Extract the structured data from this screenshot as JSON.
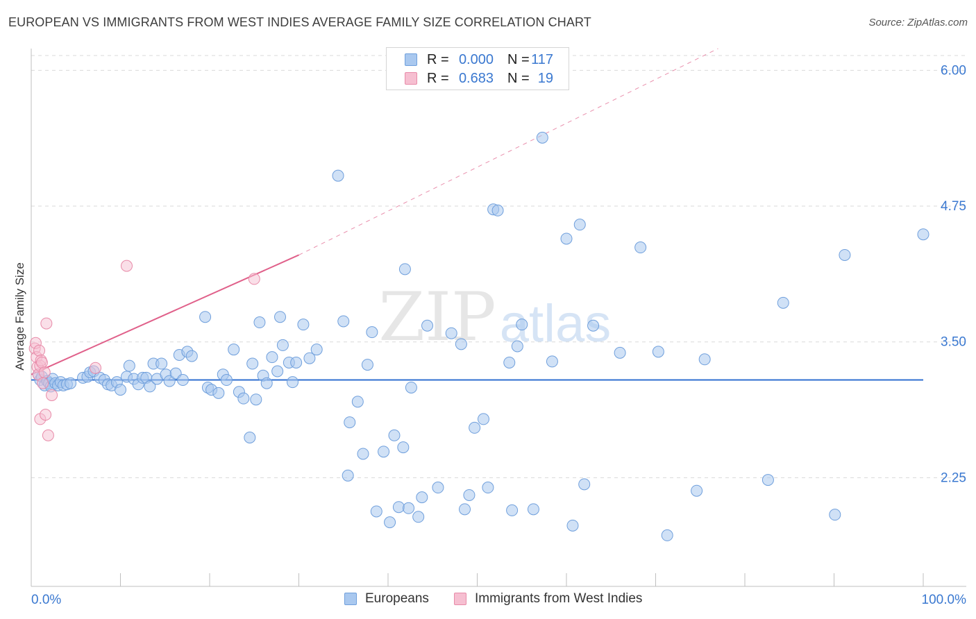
{
  "header": {
    "title": "EUROPEAN VS IMMIGRANTS FROM WEST INDIES AVERAGE FAMILY SIZE CORRELATION CHART",
    "source": "Source: ZipAtlas.com"
  },
  "watermark": {
    "zip": "ZIP",
    "atlas": "atlas"
  },
  "colors": {
    "blue_fill": "#a9c8ef",
    "blue_stroke": "#6f9fdc",
    "blue_line": "#2f6fd0",
    "pink_fill": "#f6bfd1",
    "pink_stroke": "#e88aa8",
    "pink_line": "#e0608a",
    "tick_label": "#3a78d0",
    "grid": "#d9d9d9"
  },
  "legend_top": {
    "rows": [
      {
        "series": "Europeans",
        "r_label": "R =",
        "r_value": "0.000",
        "n_label": "N =",
        "n_value": "117"
      },
      {
        "series": "Immigrants from West Indies",
        "r_label": "R =",
        "r_value": "0.683",
        "n_label": "N =",
        "n_value": "19"
      }
    ]
  },
  "legend_bottom": {
    "items": [
      "Europeans",
      "Immigrants from West Indies"
    ]
  },
  "chart_data": {
    "type": "scatter",
    "title": "EUROPEAN VS IMMIGRANTS FROM WEST INDIES AVERAGE FAMILY SIZE CORRELATION CHART",
    "xlabel": "",
    "ylabel": "Average Family Size",
    "xlim": [
      0,
      100
    ],
    "ylim": [
      1.25,
      6.2
    ],
    "x_tick_labels": [
      "0.0%",
      "100.0%"
    ],
    "y_ticks": [
      2.25,
      3.5,
      4.75,
      6.0
    ],
    "y_tick_labels": [
      "2.25",
      "3.50",
      "4.75",
      "6.00"
    ],
    "grid": true,
    "series": [
      {
        "name": "Europeans",
        "r": 0.0,
        "n": 117,
        "trend": {
          "x": [
            0,
            100
          ],
          "y": [
            3.15,
            3.15
          ],
          "style": "solid"
        },
        "points": [
          [
            0.8,
            3.2
          ],
          [
            1.0,
            3.15
          ],
          [
            1.2,
            3.18
          ],
          [
            1.5,
            3.1
          ],
          [
            1.8,
            3.14
          ],
          [
            2.0,
            3.12
          ],
          [
            2.2,
            3.09
          ],
          [
            2.4,
            3.16
          ],
          [
            2.7,
            3.12
          ],
          [
            3.0,
            3.1
          ],
          [
            3.3,
            3.13
          ],
          [
            3.6,
            3.1
          ],
          [
            4.0,
            3.11
          ],
          [
            4.4,
            3.12
          ],
          [
            5.8,
            3.17
          ],
          [
            6.3,
            3.18
          ],
          [
            6.6,
            3.22
          ],
          [
            7.0,
            3.23
          ],
          [
            7.7,
            3.17
          ],
          [
            8.2,
            3.15
          ],
          [
            8.6,
            3.11
          ],
          [
            9.0,
            3.1
          ],
          [
            9.6,
            3.13
          ],
          [
            10.0,
            3.06
          ],
          [
            10.7,
            3.18
          ],
          [
            11.0,
            3.28
          ],
          [
            11.5,
            3.16
          ],
          [
            12.0,
            3.11
          ],
          [
            12.5,
            3.17
          ],
          [
            12.9,
            3.17
          ],
          [
            13.3,
            3.09
          ],
          [
            13.7,
            3.3
          ],
          [
            14.1,
            3.16
          ],
          [
            14.6,
            3.3
          ],
          [
            15.1,
            3.2
          ],
          [
            15.5,
            3.14
          ],
          [
            16.2,
            3.21
          ],
          [
            16.6,
            3.38
          ],
          [
            17.0,
            3.15
          ],
          [
            17.5,
            3.41
          ],
          [
            18.0,
            3.37
          ],
          [
            19.5,
            3.73
          ],
          [
            19.8,
            3.08
          ],
          [
            20.2,
            3.06
          ],
          [
            21.0,
            3.03
          ],
          [
            21.5,
            3.2
          ],
          [
            21.9,
            3.15
          ],
          [
            22.7,
            3.43
          ],
          [
            23.3,
            3.04
          ],
          [
            23.8,
            2.98
          ],
          [
            24.5,
            2.62
          ],
          [
            24.8,
            3.3
          ],
          [
            25.2,
            2.97
          ],
          [
            25.6,
            3.68
          ],
          [
            26.0,
            3.19
          ],
          [
            26.4,
            3.12
          ],
          [
            27.0,
            3.36
          ],
          [
            27.6,
            3.23
          ],
          [
            27.9,
            3.73
          ],
          [
            28.2,
            3.47
          ],
          [
            28.9,
            3.31
          ],
          [
            29.3,
            3.13
          ],
          [
            29.7,
            3.31
          ],
          [
            30.5,
            3.66
          ],
          [
            31.2,
            3.35
          ],
          [
            32.0,
            3.43
          ],
          [
            34.4,
            5.03
          ],
          [
            35.0,
            3.69
          ],
          [
            35.5,
            2.27
          ],
          [
            35.7,
            2.76
          ],
          [
            36.6,
            2.95
          ],
          [
            37.2,
            2.47
          ],
          [
            37.7,
            3.29
          ],
          [
            38.2,
            3.59
          ],
          [
            38.7,
            1.94
          ],
          [
            39.5,
            2.49
          ],
          [
            40.2,
            1.84
          ],
          [
            40.7,
            2.64
          ],
          [
            41.2,
            1.98
          ],
          [
            41.7,
            2.53
          ],
          [
            41.9,
            4.17
          ],
          [
            42.3,
            1.97
          ],
          [
            42.6,
            3.08
          ],
          [
            43.4,
            1.89
          ],
          [
            43.8,
            2.07
          ],
          [
            44.4,
            3.65
          ],
          [
            45.6,
            2.16
          ],
          [
            47.1,
            3.58
          ],
          [
            48.2,
            3.48
          ],
          [
            48.6,
            1.96
          ],
          [
            49.1,
            2.09
          ],
          [
            49.7,
            2.71
          ],
          [
            50.7,
            2.79
          ],
          [
            51.2,
            2.16
          ],
          [
            51.8,
            4.72
          ],
          [
            52.3,
            4.71
          ],
          [
            53.6,
            3.31
          ],
          [
            53.9,
            1.95
          ],
          [
            54.5,
            3.46
          ],
          [
            55.0,
            3.66
          ],
          [
            56.3,
            1.96
          ],
          [
            57.3,
            5.38
          ],
          [
            58.4,
            3.32
          ],
          [
            60.0,
            4.45
          ],
          [
            60.7,
            1.81
          ],
          [
            61.5,
            4.58
          ],
          [
            62.0,
            2.19
          ],
          [
            63.0,
            3.65
          ],
          [
            66.0,
            3.4
          ],
          [
            68.3,
            4.37
          ],
          [
            70.3,
            3.41
          ],
          [
            71.3,
            1.72
          ],
          [
            74.6,
            2.13
          ],
          [
            75.5,
            3.34
          ],
          [
            82.6,
            2.23
          ],
          [
            84.3,
            3.86
          ],
          [
            90.1,
            1.91
          ],
          [
            91.2,
            4.3
          ],
          [
            100.0,
            4.49
          ]
        ]
      },
      {
        "name": "Immigrants from West Indies",
        "r": 0.683,
        "n": 19,
        "trend": {
          "x": [
            0,
            30
          ],
          "y": [
            3.2,
            4.3
          ],
          "style": "solid",
          "extended_to": [
            77,
            6.2
          ],
          "extended_style": "dashed"
        },
        "points": [
          [
            0.4,
            3.44
          ],
          [
            0.5,
            3.49
          ],
          [
            0.6,
            3.36
          ],
          [
            0.7,
            3.27
          ],
          [
            0.8,
            3.2
          ],
          [
            0.9,
            3.42
          ],
          [
            1.0,
            3.28
          ],
          [
            1.1,
            3.33
          ],
          [
            1.2,
            3.31
          ],
          [
            1.3,
            3.12
          ],
          [
            1.5,
            3.22
          ],
          [
            1.7,
            3.67
          ],
          [
            1.0,
            2.79
          ],
          [
            1.6,
            2.83
          ],
          [
            1.9,
            2.64
          ],
          [
            2.3,
            3.01
          ],
          [
            7.2,
            3.26
          ],
          [
            10.7,
            4.2
          ],
          [
            25.0,
            4.08
          ]
        ]
      }
    ]
  }
}
